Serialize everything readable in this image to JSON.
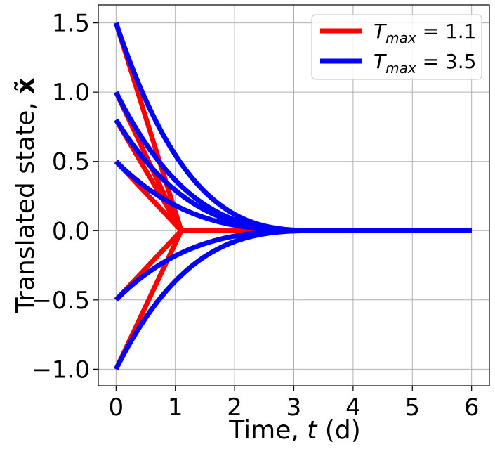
{
  "chart_data": {
    "type": "line",
    "xlabel_prefix": "Time, ",
    "xlabel_var": "t",
    "xlabel_suffix": " (d)",
    "ylabel_prefix": "Translated state, ",
    "ylabel_var": "x̃",
    "xlim": [
      -0.3,
      6.3
    ],
    "ylim": [
      -1.12,
      1.63
    ],
    "xticks": [
      0,
      1,
      2,
      3,
      4,
      5,
      6
    ],
    "xtick_labels": [
      "0",
      "1",
      "2",
      "3",
      "4",
      "5",
      "6"
    ],
    "yticks": [
      1.5,
      1.0,
      0.5,
      0.0,
      -0.5,
      -1.0
    ],
    "ytick_labels": [
      "1.5",
      "1.0",
      "0.5",
      "0.0",
      "−0.5",
      "−1.0"
    ],
    "grid": true,
    "legend_position": "top-right",
    "initial_states": [
      1.5,
      1.0,
      0.8,
      0.5,
      -0.5,
      -1.0
    ],
    "x_end": 6.0,
    "series": [
      {
        "name": "T_max = 1.1",
        "legend_symbol": "T",
        "legend_subscript": "max",
        "legend_value": " = 1.1",
        "color": "#ff0000",
        "settle_time": 1.1,
        "shape": "linear"
      },
      {
        "name": "T_max = 3.5",
        "legend_symbol": "T",
        "legend_subscript": "max",
        "legend_value": " = 3.5",
        "color": "#0000ff",
        "settle_time": 3.5,
        "shape": "fixed-time"
      }
    ]
  }
}
